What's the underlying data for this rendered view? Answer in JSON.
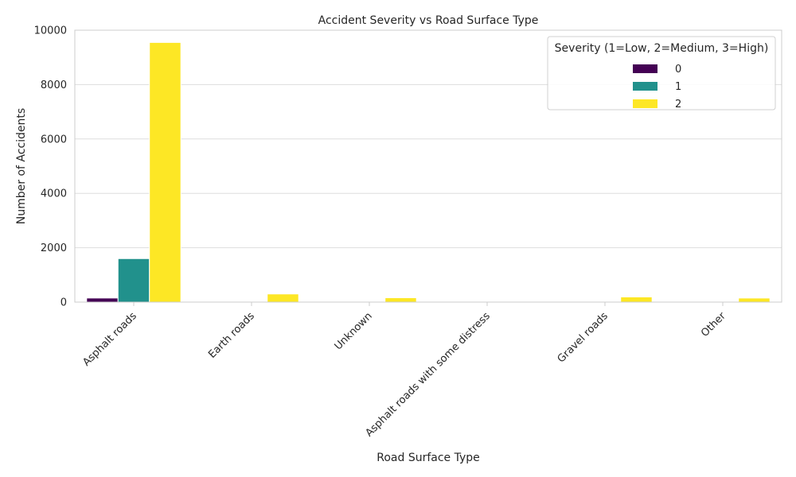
{
  "chart_data": {
    "type": "bar",
    "title": "Accident Severity vs Road Surface Type",
    "xlabel": "Road Surface Type",
    "ylabel": "Number of Accidents",
    "categories": [
      "Asphalt roads",
      "Earth roads",
      "Unknown",
      "Asphalt roads with some distress",
      "Gravel roads",
      "Other"
    ],
    "series": [
      {
        "name": "0",
        "color": "#440154",
        "values": [
          150,
          0,
          0,
          0,
          0,
          0
        ]
      },
      {
        "name": "1",
        "color": "#21918c",
        "values": [
          1600,
          10,
          5,
          2,
          5,
          5
        ]
      },
      {
        "name": "2",
        "color": "#fde725",
        "values": [
          9550,
          300,
          160,
          10,
          190,
          150
        ]
      }
    ],
    "ylim": [
      0,
      10000
    ],
    "yticks": [
      0,
      2000,
      4000,
      6000,
      8000,
      10000
    ],
    "grid": true,
    "legend": {
      "title": "Severity (1=Low, 2=Medium, 3=High)",
      "position": "top-right"
    }
  }
}
